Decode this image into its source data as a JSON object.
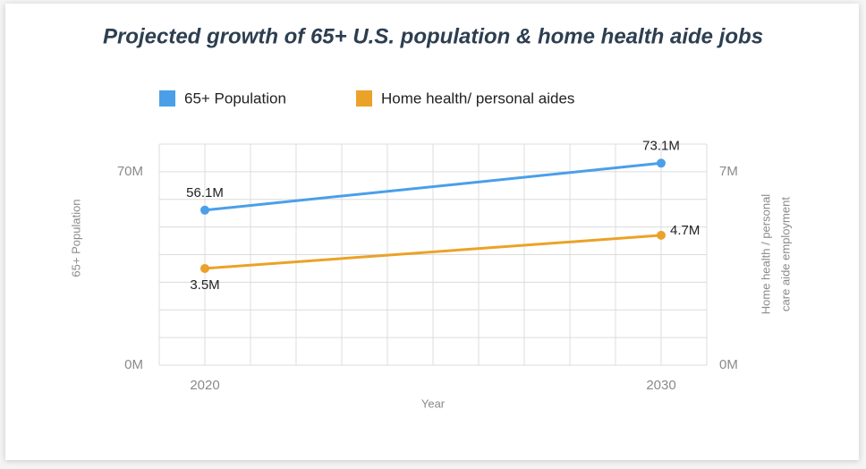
{
  "chart_data": {
    "type": "line",
    "title": "Projected growth of 65+ U.S. population & home health aide jobs",
    "xlabel": "Year",
    "ylabel": "65+ Population",
    "y2label": [
      "Home health / personal",
      "care aide employment"
    ],
    "x": [
      2020,
      2030
    ],
    "xlim": [
      2019,
      2031
    ],
    "xticks": [
      2020,
      2030
    ],
    "x_grid_ticks": [
      2019,
      2020,
      2021,
      2022,
      2023,
      2024,
      2025,
      2026,
      2027,
      2028,
      2029,
      2030,
      2031
    ],
    "ylim": [
      0,
      80
    ],
    "yticks": [
      {
        "value": 0,
        "label": "0M"
      },
      {
        "value": 70,
        "label": "70M"
      }
    ],
    "y_grid_ticks": [
      0,
      10,
      20,
      30,
      40,
      50,
      60,
      70,
      80
    ],
    "y2lim": [
      0,
      8
    ],
    "y2ticks": [
      {
        "value": 0,
        "label": "0M"
      },
      {
        "value": 7,
        "label": "7M"
      }
    ],
    "grid": true,
    "legend": "top",
    "series": [
      {
        "name": "65+ Population",
        "color": "#4a9fe8",
        "values": [
          56.1,
          73.1
        ],
        "value_labels": [
          "56.1M",
          "73.1M"
        ]
      },
      {
        "name": "Home health/ personal aides",
        "color": "#eba228",
        "axis": "y2",
        "values": [
          3.5,
          4.7
        ],
        "value_labels": [
          "3.5M",
          "4.7M"
        ]
      }
    ]
  }
}
